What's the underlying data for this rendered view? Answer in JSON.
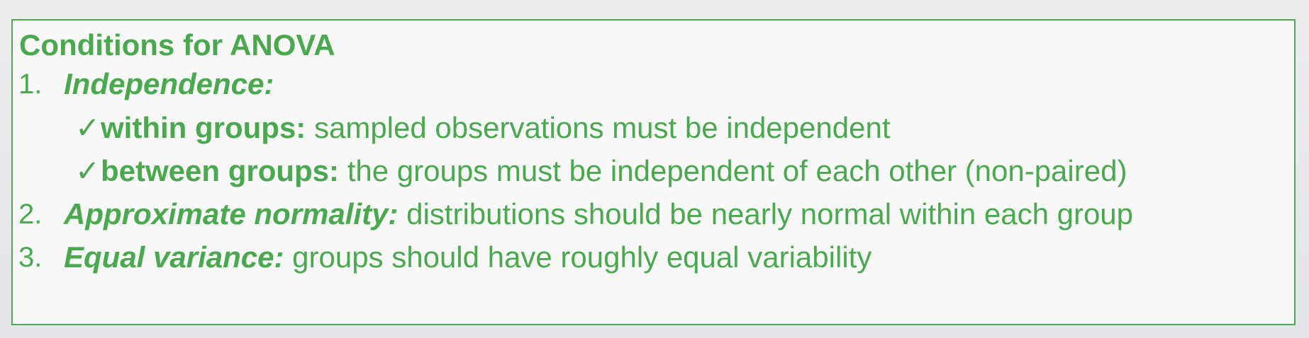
{
  "title": "Conditions for ANOVA",
  "conditions": [
    {
      "number": "1.",
      "term": "Independence:",
      "description": "",
      "subitems": [
        {
          "check": "✓",
          "term": "within groups:",
          "description": "sampled observations must be independent"
        },
        {
          "check": "✓",
          "term": "between groups:",
          "description": "the groups must be independent of each other (non-paired)"
        }
      ]
    },
    {
      "number": "2.",
      "term": "Approximate normality:",
      "description": "distributions should be nearly normal within each group"
    },
    {
      "number": "3.",
      "term": "Equal variance:",
      "description": "groups should have roughly equal variability"
    }
  ],
  "colors": {
    "text": "#4aa94e",
    "border": "#4ea84f",
    "background": "#f7f8f7"
  }
}
